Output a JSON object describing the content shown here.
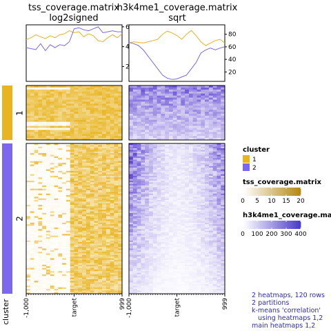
{
  "chart_data": {
    "type": "heatmap",
    "heatmaps": [
      {
        "title_line1": "tss_coverage.matrix",
        "title_line2": "log2signed",
        "profile_axis_ticks": [
          "2",
          "4",
          "6"
        ],
        "profile_ylim": [
          0.5,
          6.2
        ],
        "x_tick_labels": [
          "-1,000",
          "target",
          "999"
        ],
        "color_low": "#ffffff",
        "color_high": "#e8b420"
      },
      {
        "title_line1": "h3k4me1_coverage.matrix",
        "title_line2": "sqrt",
        "profile_axis_ticks": [
          "20",
          "40",
          "60",
          "80"
        ],
        "profile_ylim": [
          5,
          95
        ],
        "x_tick_labels": [
          "-1,000",
          "target",
          "999"
        ],
        "color_low": "#ffffff",
        "color_high": "#5a3fd0"
      }
    ],
    "profiles": {
      "tss": {
        "x": [
          -1000,
          -900,
          -800,
          -700,
          -600,
          -500,
          -400,
          -300,
          -200,
          -100,
          0,
          100,
          200,
          300,
          400,
          500,
          600,
          700,
          800,
          900,
          999
        ],
        "cluster1": [
          4.7,
          4.9,
          5.2,
          5.0,
          4.8,
          5.1,
          4.9,
          5.2,
          5.3,
          5.6,
          5.4,
          5.5,
          5.0,
          5.3,
          5.1,
          4.6,
          4.5,
          4.9,
          5.2,
          4.9,
          5.3
        ],
        "cluster2": [
          3.9,
          3.8,
          3.7,
          4.3,
          3.6,
          4.2,
          3.9,
          4.2,
          4.1,
          4.5,
          5.8,
          5.9,
          5.7,
          5.6,
          5.8,
          6.0,
          5.4,
          5.5,
          5.6,
          5.5,
          5.5
        ]
      },
      "h3k4me1": {
        "x": [
          -1000,
          -900,
          -800,
          -700,
          -600,
          -500,
          -400,
          -300,
          -200,
          -100,
          0,
          100,
          200,
          300,
          400,
          500,
          600,
          700,
          800,
          900,
          999
        ],
        "cluster1": [
          66,
          68,
          67,
          66,
          68,
          70,
          72,
          80,
          85,
          82,
          78,
          72,
          80,
          86,
          78,
          68,
          62,
          66,
          70,
          72,
          66
        ],
        "cluster2": [
          67,
          65,
          62,
          55,
          45,
          35,
          25,
          15,
          10,
          8,
          9,
          12,
          15,
          25,
          35,
          50,
          55,
          58,
          55,
          58,
          60
        ]
      }
    },
    "clusters": [
      {
        "label": "1",
        "rows": 27,
        "color": "#e8b420"
      },
      {
        "label": "2",
        "rows": 93,
        "color": "#7b68ee"
      }
    ],
    "row_annotation_title": "cluster",
    "legends": [
      {
        "title": "cluster",
        "type": "discrete",
        "items": [
          {
            "label": "1",
            "color": "#e8b420"
          },
          {
            "label": "2",
            "color": "#7b68ee"
          }
        ]
      },
      {
        "title": "tss_coverage.matrix",
        "type": "continuous",
        "ticks": [
          "0",
          "5",
          "10",
          "15",
          "20"
        ],
        "range": [
          0,
          20
        ],
        "color_low": "#ffffff",
        "color_high": "#b58a14"
      },
      {
        "title": "h3k4me1_coverage.ma",
        "type": "continuous",
        "ticks": [
          "0",
          "100",
          "200",
          "300",
          "400"
        ],
        "range": [
          0,
          400
        ],
        "color_low": "#ffffff",
        "color_high": "#4b3cc8"
      }
    ],
    "info_text": "2 heatmaps, 120 rows\n2 partitions\nk-means 'correlation'\n   using heatmaps 1,2\nmain heatmaps 1,2"
  }
}
